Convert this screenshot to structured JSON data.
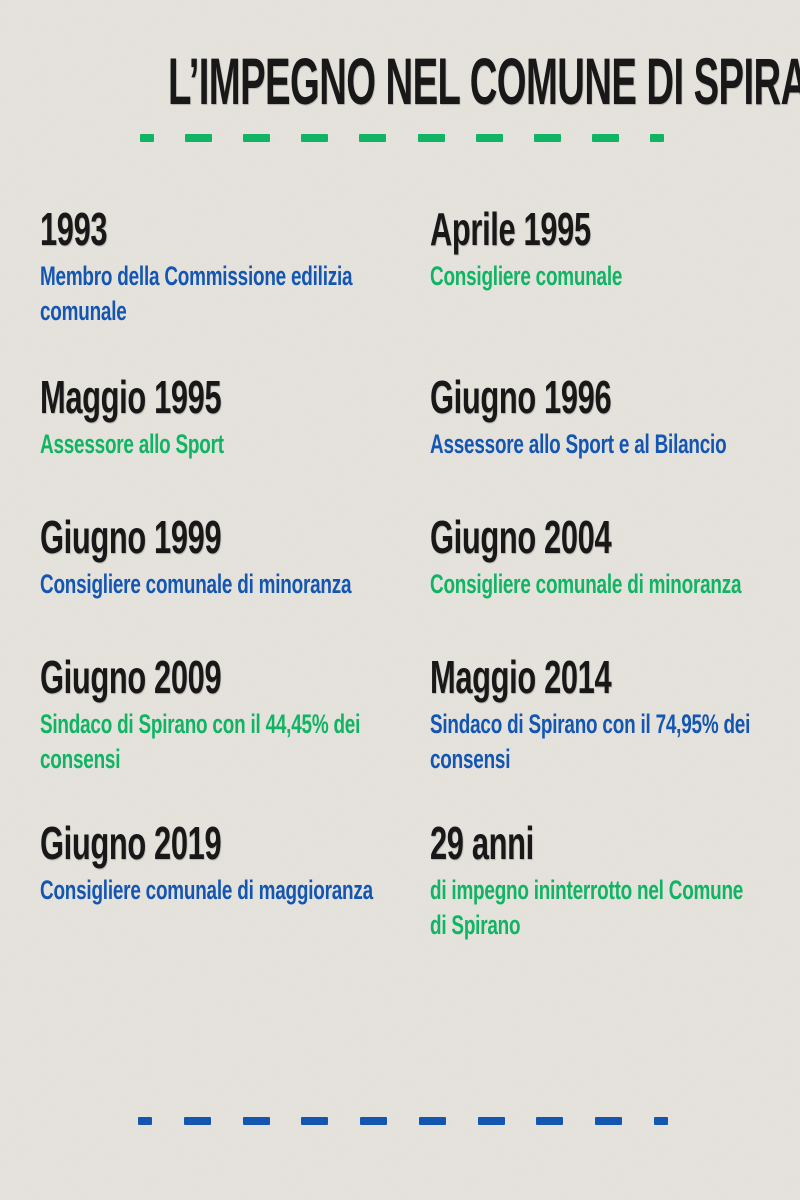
{
  "poster": {
    "title": "L’IMPEGNO NEL COMUNE DI SPIRANO",
    "colors": {
      "background": "#e5e2dc",
      "heading": "#161616",
      "blue": "#1155b2",
      "green": "#0db463"
    },
    "dividers": {
      "top_color": "green",
      "bottom_color": "blue",
      "dash_count": 10
    }
  },
  "timeline": {
    "entries": [
      {
        "date": "1993",
        "description": "Membro della Commissione edilizia\ncomunale",
        "color": "blue"
      },
      {
        "date": "Aprile 1995",
        "description": "Consigliere comunale",
        "color": "green"
      },
      {
        "date": "Maggio 1995",
        "description": "Assessore allo Sport",
        "color": "green"
      },
      {
        "date": "Giugno 1996",
        "description": "Assessore allo Sport e al Bilancio",
        "color": "blue"
      },
      {
        "date": "Giugno 1999",
        "description": "Consigliere comunale di minoranza",
        "color": "blue"
      },
      {
        "date": "Giugno 2004",
        "description": "Consigliere comunale di minoranza",
        "color": "green"
      },
      {
        "date": "Giugno 2009",
        "description": "Sindaco di Spirano con il 44,45% dei\nconsensi",
        "color": "green"
      },
      {
        "date": "Maggio 2014",
        "description": "Sindaco di Spirano con il 74,95% dei\nconsensi",
        "color": "blue"
      },
      {
        "date": "Giugno 2019",
        "description": "Consigliere comunale di maggioranza",
        "color": "blue"
      },
      {
        "date": "29 anni",
        "description": "di impegno ininterrotto nel Comune\ndi Spirano",
        "color": "green"
      }
    ]
  }
}
